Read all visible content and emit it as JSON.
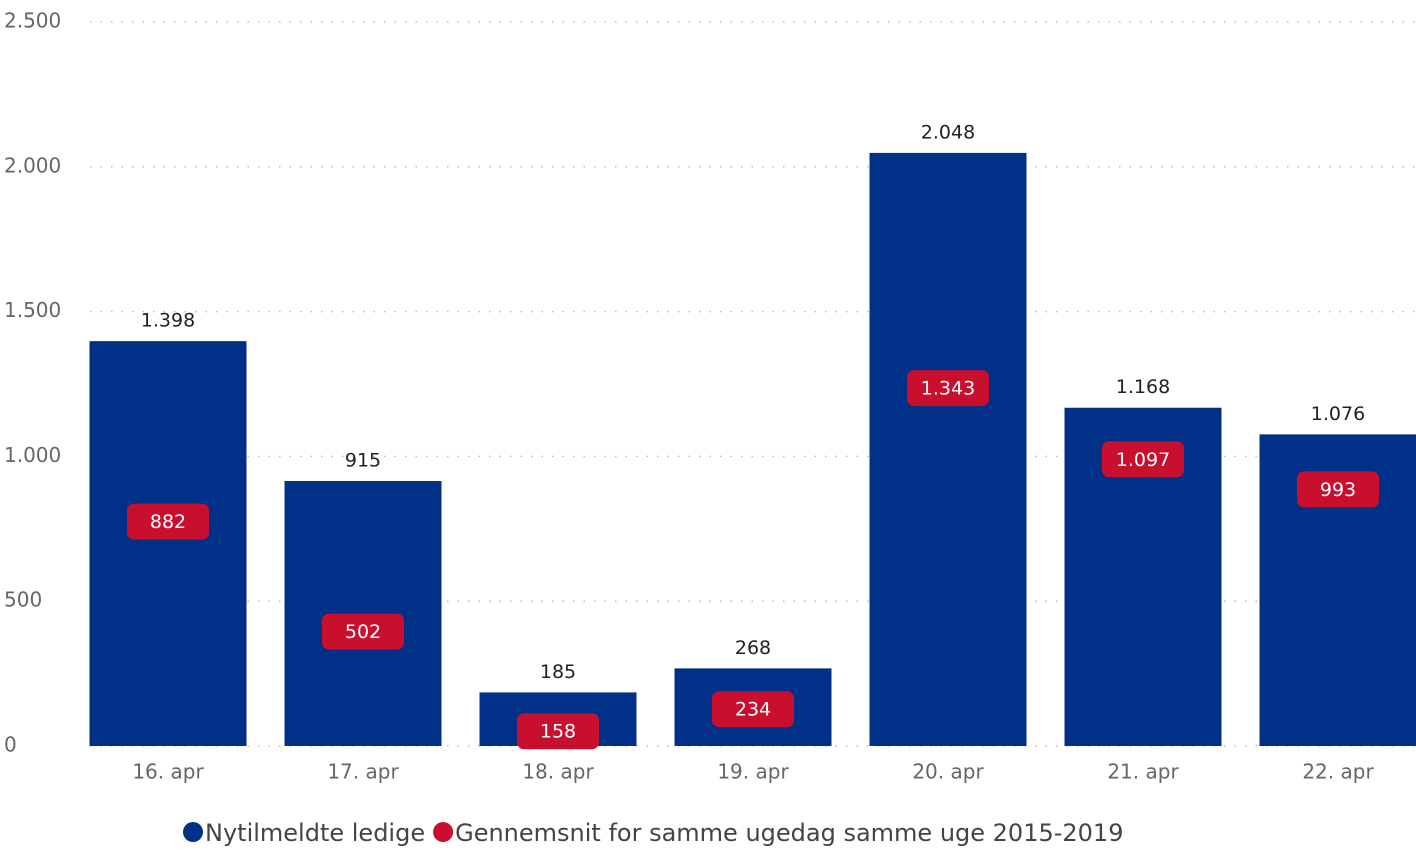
{
  "chart_data": {
    "type": "bar",
    "categories": [
      "16. apr",
      "17. apr",
      "18. apr",
      "19. apr",
      "20. apr",
      "21. apr",
      "22. apr"
    ],
    "series": [
      {
        "name": "Nytilmeldte ledige",
        "color": "#003087",
        "values": [
          1398,
          915,
          185,
          268,
          2048,
          1168,
          1076
        ],
        "value_labels": [
          "1.398",
          "915",
          "185",
          "268",
          "2.048",
          "1.168",
          "1.076"
        ]
      },
      {
        "name": "Gennemsnit for samme ugedag samme uge 2015-2019",
        "color": "#c8102e",
        "values": [
          882,
          502,
          158,
          234,
          1343,
          1097,
          993
        ],
        "value_labels": [
          "882",
          "502",
          "158",
          "234",
          "1.343",
          "1.097",
          "993"
        ]
      }
    ],
    "ylim": [
      0,
      2500
    ],
    "yticks": [
      0,
      500,
      {
        "value": 1000,
        "label": "1.000"
      },
      {
        "value": 1500,
        "label": "1.500"
      },
      {
        "value": 2000,
        "label": "2.000"
      },
      {
        "value": 2500,
        "label": "2.500"
      }
    ],
    "grid": true,
    "legend": "bottom"
  }
}
